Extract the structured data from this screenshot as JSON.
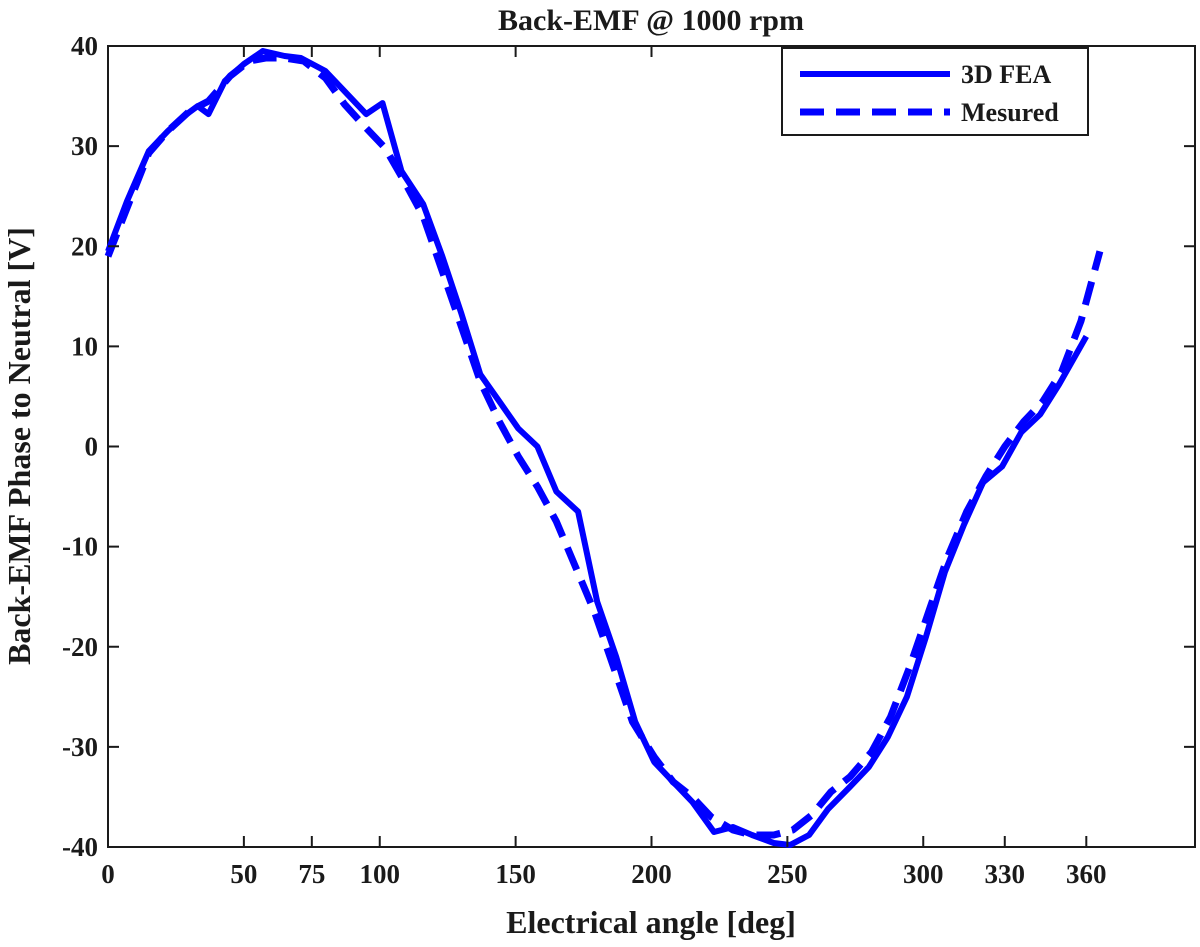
{
  "chart_data": {
    "type": "line",
    "title": "Back-EMF @ 1000 rpm",
    "xlabel": "Electrical angle [deg]",
    "ylabel": "Back-EMF Phase to Neutral [V]",
    "xlim": [
      0,
      400
    ],
    "ylim": [
      -40,
      40
    ],
    "xticks": [
      0,
      50,
      75,
      100,
      150,
      200,
      250,
      300,
      330,
      360
    ],
    "yticks": [
      40,
      30,
      20,
      10,
      0,
      -10,
      -20,
      -30,
      -40
    ],
    "grid": false,
    "legend_position": "top-right",
    "series": [
      {
        "name": "3D FEA",
        "style": "solid",
        "color": "#0000ff",
        "x": [
          0,
          7,
          15,
          22,
          28,
          33,
          37,
          43,
          50,
          57,
          65,
          71,
          80,
          87,
          95,
          101,
          108,
          116,
          123,
          130,
          137,
          144,
          151,
          158,
          165,
          173,
          180,
          187,
          194,
          201,
          208,
          215,
          223,
          230,
          237,
          245,
          251,
          258,
          265,
          273,
          280,
          287,
          294,
          301,
          308,
          315,
          322,
          329,
          336,
          343,
          350,
          360
        ],
        "y": [
          19.5,
          24.5,
          29.5,
          31.5,
          33.0,
          34.0,
          33.2,
          36.5,
          38.2,
          39.5,
          39.0,
          38.8,
          37.5,
          35.5,
          33.2,
          34.3,
          27.5,
          24.2,
          19.0,
          13.3,
          7.2,
          4.5,
          1.8,
          0,
          -4.5,
          -6.5,
          -15.5,
          -21.0,
          -27.5,
          -31.5,
          -33.5,
          -35.5,
          -38.5,
          -38.0,
          -38.8,
          -39.6,
          -39.8,
          -38.8,
          -36.2,
          -34.0,
          -32.0,
          -29.0,
          -25.0,
          -19.0,
          -12.5,
          -7.8,
          -3.6,
          -2.0,
          1.4,
          3.2,
          6.2,
          11.0
        ]
      },
      {
        "name": "Mesured",
        "style": "dashed",
        "color": "#0000ff",
        "x": [
          0,
          8,
          15,
          22,
          30,
          37,
          45,
          52,
          58,
          65,
          72,
          80,
          87,
          95,
          102,
          109,
          116,
          123,
          130,
          137,
          144,
          151,
          158,
          165,
          172,
          179,
          186,
          193,
          201,
          208,
          215,
          222,
          230,
          237,
          245,
          252,
          259,
          266,
          273,
          281,
          288,
          295,
          302,
          309,
          316,
          323,
          330,
          337,
          344,
          351,
          358,
          365
        ],
        "y": [
          19.0,
          24.5,
          29.3,
          31.5,
          33.5,
          34.5,
          37.0,
          38.5,
          38.8,
          38.8,
          38.5,
          36.8,
          34.2,
          31.8,
          29.8,
          26.5,
          23.0,
          17.5,
          12.0,
          6.5,
          2.5,
          -1.0,
          -4.0,
          -7.5,
          -12.0,
          -16.5,
          -22.0,
          -27.5,
          -31.0,
          -33.5,
          -35.0,
          -37.0,
          -38.3,
          -38.8,
          -38.8,
          -38.3,
          -36.8,
          -34.5,
          -33.0,
          -30.5,
          -27.0,
          -22.0,
          -16.5,
          -11.0,
          -6.5,
          -3.0,
          0.0,
          2.5,
          4.5,
          7.5,
          12.5,
          19.5
        ]
      }
    ]
  }
}
